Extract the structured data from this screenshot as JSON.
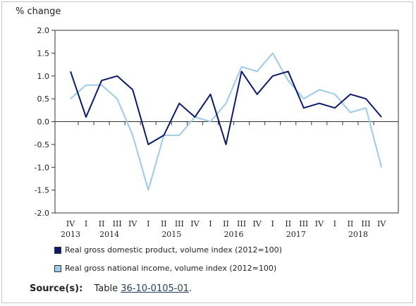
{
  "chart_data": {
    "type": "line",
    "title": "",
    "ylabel": "% change",
    "xlabel": "",
    "ylim": [
      -2.0,
      2.0
    ],
    "yticks": [
      2.0,
      1.5,
      1.0,
      0.5,
      0.0,
      -0.5,
      -1.0,
      -1.5,
      -2.0
    ],
    "ytick_labels": [
      "2.0",
      "1.5",
      "1.0",
      "0.5",
      "0.0",
      "-0.5",
      "-1.0",
      "-1.5",
      "-2.0"
    ],
    "quarters": [
      "IV",
      "I",
      "II",
      "III",
      "IV",
      "I",
      "II",
      "III",
      "IV",
      "I",
      "II",
      "III",
      "IV",
      "I",
      "II",
      "III",
      "IV",
      "I",
      "II",
      "III",
      "IV"
    ],
    "years": [
      {
        "label": "2013",
        "index": 0
      },
      {
        "label": "2014",
        "index": 2.5
      },
      {
        "label": "2015",
        "index": 6.5
      },
      {
        "label": "2016",
        "index": 10.5
      },
      {
        "label": "2017",
        "index": 14.5
      },
      {
        "label": "2018",
        "index": 18.5
      }
    ],
    "series": [
      {
        "name": "Real gross domestic product, volume index (2012=100)",
        "color": "#0b1a6b",
        "values": [
          1.1,
          0.1,
          0.9,
          1.0,
          0.7,
          -0.5,
          -0.3,
          0.4,
          0.1,
          0.6,
          -0.5,
          1.1,
          0.6,
          1.0,
          1.1,
          0.3,
          0.4,
          0.3,
          0.6,
          0.5,
          0.1
        ]
      },
      {
        "name": "Real gross national income, volume index (2012=100)",
        "color": "#9ecae9",
        "values": [
          0.5,
          0.8,
          0.8,
          0.5,
          -0.3,
          -1.5,
          -0.3,
          -0.3,
          0.1,
          0.0,
          0.4,
          1.2,
          1.1,
          1.5,
          0.9,
          0.5,
          0.7,
          0.6,
          0.2,
          0.3,
          -1.0
        ]
      }
    ],
    "grid": false,
    "legend_position": "bottom"
  },
  "source": {
    "label": "Source(s):",
    "prefix": "Table",
    "link": "36-10-0105-01",
    "suffix": "."
  }
}
